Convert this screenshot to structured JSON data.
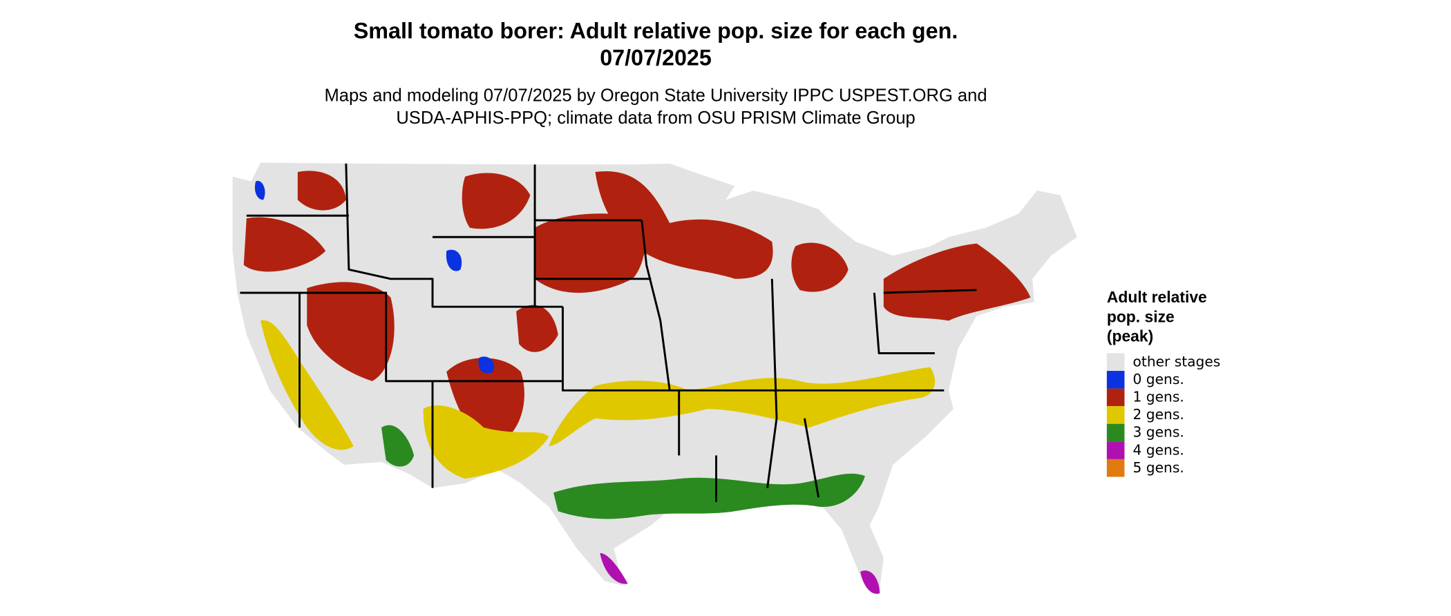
{
  "title": "Small tomato borer: Adult relative pop. size for each gen.",
  "date": "07/07/2025",
  "subtitle": [
    "Maps and modeling 07/07/2025 by Oregon State University IPPC USPEST.ORG and",
    "USDA-APHIS-PPQ; climate data from OSU PRISM Climate Group"
  ],
  "legend": {
    "title": [
      "Adult relative",
      "pop. size",
      "(peak)"
    ],
    "items": [
      {
        "label": "other stages",
        "color": "#e3e3e3"
      },
      {
        "label": "0 gens.",
        "color": "#0a32e0"
      },
      {
        "label": "1 gens.",
        "color": "#b0220f"
      },
      {
        "label": "2 gens.",
        "color": "#e0c800"
      },
      {
        "label": "3 gens.",
        "color": "#2a8a20"
      },
      {
        "label": "4 gens.",
        "color": "#b010b0"
      },
      {
        "label": "5 gens.",
        "color": "#e07a10"
      }
    ]
  }
}
